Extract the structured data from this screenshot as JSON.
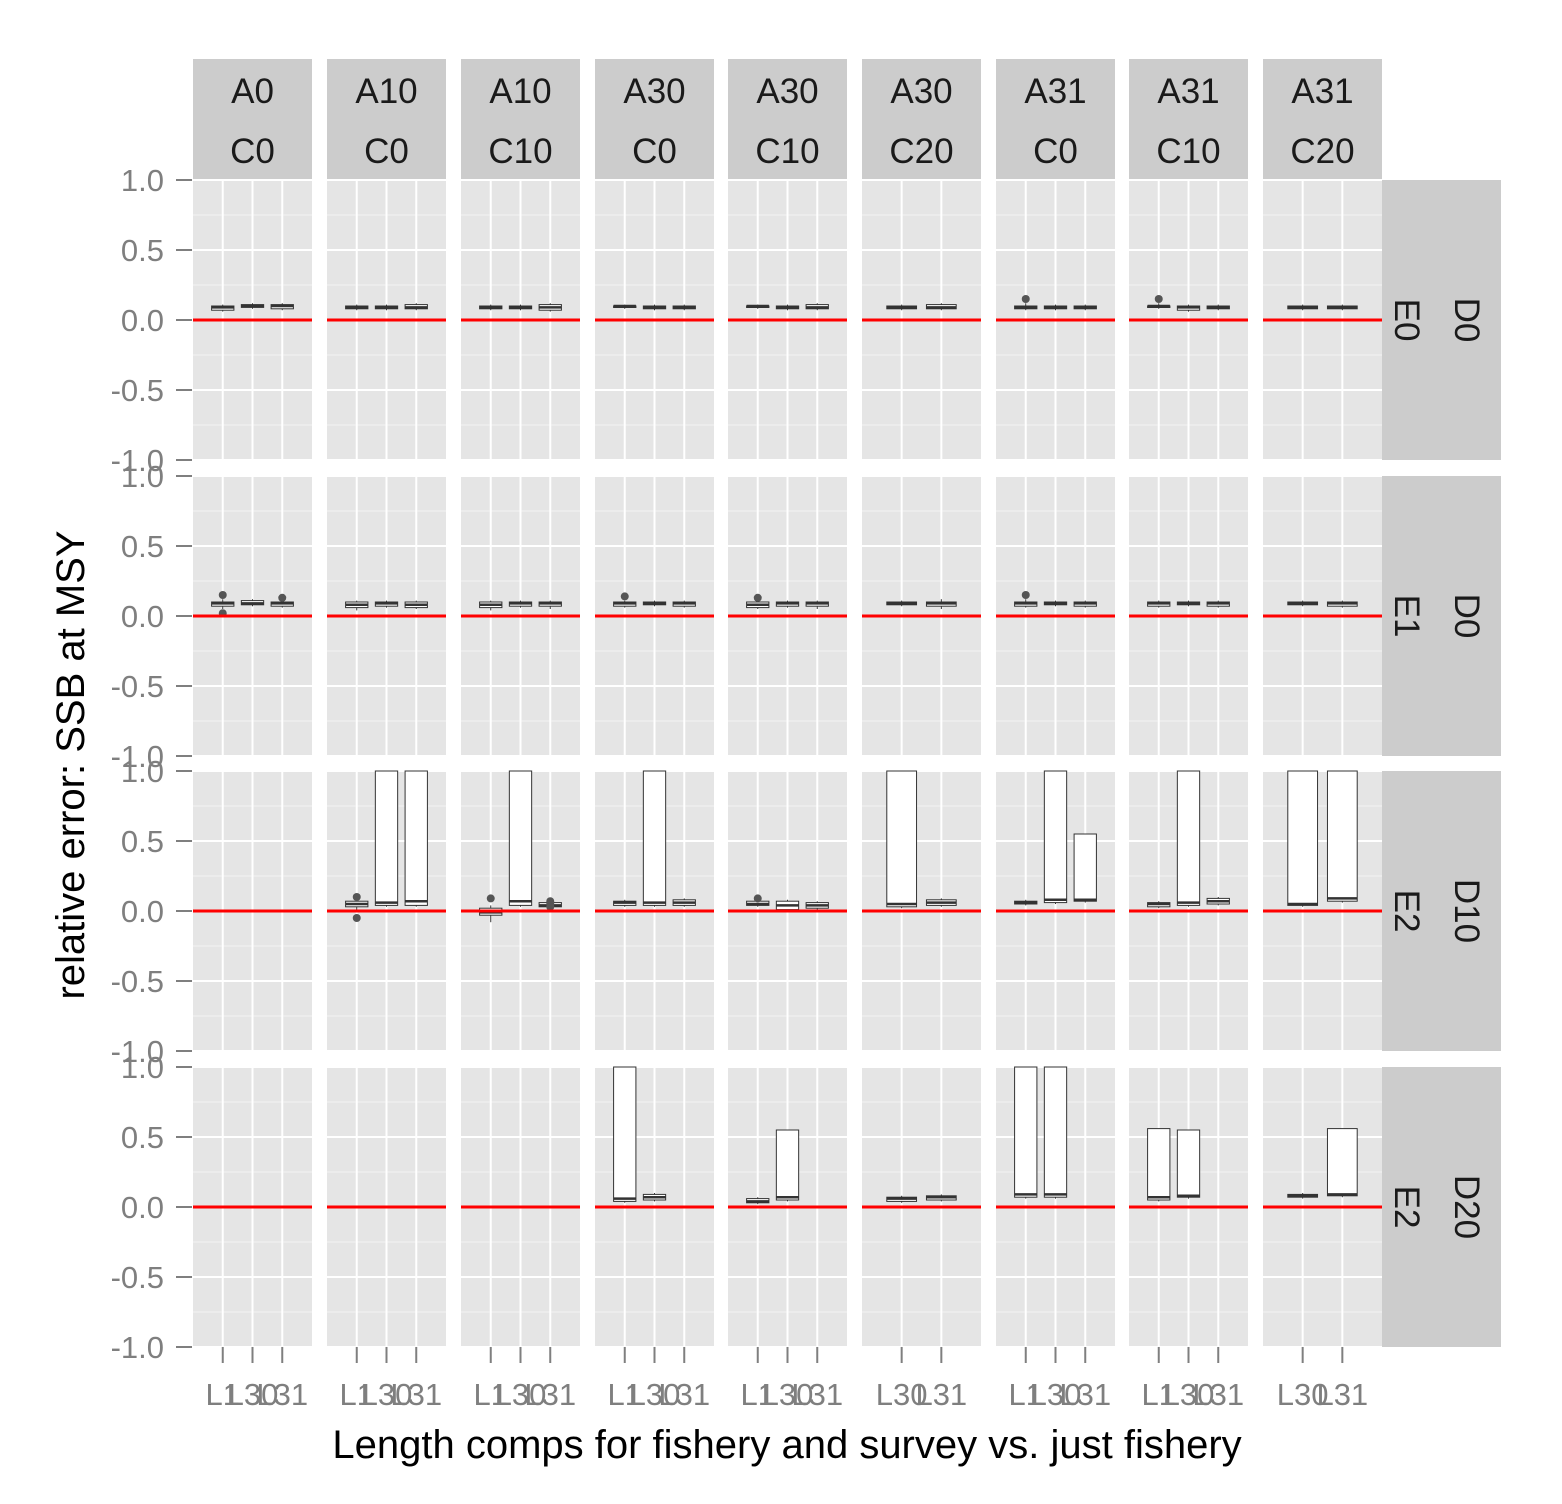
{
  "chart_data": {
    "type": "boxplot",
    "xlabel": "Length comps for fishery and survey vs. just fishery",
    "ylabel": "relative error: SSB at MSY",
    "ylim": [
      -1.0,
      1.0
    ],
    "y_ticks": [
      "1.0",
      "0.5",
      "0.0",
      "-0.5",
      "-1.0"
    ],
    "y_tick_values": [
      1.0,
      0.5,
      0.0,
      -0.5,
      -1.0
    ],
    "reference_line": {
      "y": 0,
      "color": "#ff0000"
    },
    "colors": {
      "panel_bg": "#e5e5e5",
      "strip_bg": "#cccccc",
      "grid": "#ffffff",
      "box_fill": "#ffffff",
      "box_stroke": "#333333",
      "outlier": "#555555"
    },
    "columns": [
      {
        "top": "A0",
        "bottom": "C0",
        "x_categories": [
          "L1",
          "L30",
          "L31"
        ],
        "x_tick_labels": [
          "L1",
          "L30",
          "L31"
        ]
      },
      {
        "top": "A10",
        "bottom": "C0",
        "x_categories": [
          "L1",
          "L30",
          "L31"
        ],
        "x_tick_labels": [
          "L1",
          "L30",
          "L31"
        ]
      },
      {
        "top": "A10",
        "bottom": "C10",
        "x_categories": [
          "L1",
          "L30",
          "L31"
        ],
        "x_tick_labels": [
          "L1",
          "L30",
          "L31"
        ]
      },
      {
        "top": "A30",
        "bottom": "C0",
        "x_categories": [
          "L1",
          "L30",
          "L31"
        ],
        "x_tick_labels": [
          "L1",
          "L30",
          "L31"
        ]
      },
      {
        "top": "A30",
        "bottom": "C10",
        "x_categories": [
          "L1",
          "L30",
          "L31"
        ],
        "x_tick_labels": [
          "L1",
          "L30",
          "L31"
        ]
      },
      {
        "top": "A30",
        "bottom": "C20",
        "x_categories": [
          "L30",
          "L31"
        ],
        "x_tick_labels": [
          "L30",
          "L31"
        ]
      },
      {
        "top": "A31",
        "bottom": "C0",
        "x_categories": [
          "L1",
          "L30",
          "L31"
        ],
        "x_tick_labels": [
          "L1",
          "L30",
          "L31"
        ]
      },
      {
        "top": "A31",
        "bottom": "C10",
        "x_categories": [
          "L1",
          "L30",
          "L31"
        ],
        "x_tick_labels": [
          "L1",
          "L30",
          "L31"
        ]
      },
      {
        "top": "A31",
        "bottom": "C20",
        "x_categories": [
          "L30",
          "L31"
        ],
        "x_tick_labels": [
          "L30",
          "L31"
        ]
      }
    ],
    "rows": [
      {
        "top": "D0",
        "bottom": "E0"
      },
      {
        "top": "D0",
        "bottom": "E1"
      },
      {
        "top": "D10",
        "bottom": "E2"
      },
      {
        "top": "D20",
        "bottom": "E2"
      }
    ],
    "boxes": [
      [
        [
          {
            "q1": 0.07,
            "med": 0.09,
            "q3": 0.1,
            "lo": 0.06,
            "hi": 0.11
          },
          {
            "q1": 0.09,
            "med": 0.1,
            "q3": 0.11,
            "lo": 0.08,
            "hi": 0.12
          },
          {
            "q1": 0.08,
            "med": 0.1,
            "q3": 0.11,
            "lo": 0.07,
            "hi": 0.12
          }
        ],
        [
          {
            "q1": 0.08,
            "med": 0.09,
            "q3": 0.1,
            "lo": 0.07,
            "hi": 0.11
          },
          {
            "q1": 0.08,
            "med": 0.09,
            "q3": 0.1,
            "lo": 0.07,
            "hi": 0.11
          },
          {
            "q1": 0.08,
            "med": 0.09,
            "q3": 0.11,
            "lo": 0.07,
            "hi": 0.12
          }
        ],
        [
          {
            "q1": 0.08,
            "med": 0.09,
            "q3": 0.1,
            "lo": 0.07,
            "hi": 0.11
          },
          {
            "q1": 0.08,
            "med": 0.09,
            "q3": 0.1,
            "lo": 0.07,
            "hi": 0.11
          },
          {
            "q1": 0.07,
            "med": 0.09,
            "q3": 0.11,
            "lo": 0.06,
            "hi": 0.12
          }
        ],
        [
          {
            "q1": 0.09,
            "med": 0.1,
            "q3": 0.1,
            "lo": 0.08,
            "hi": 0.11
          },
          {
            "q1": 0.08,
            "med": 0.09,
            "q3": 0.1,
            "lo": 0.07,
            "hi": 0.11
          },
          {
            "q1": 0.08,
            "med": 0.09,
            "q3": 0.1,
            "lo": 0.07,
            "hi": 0.11
          }
        ],
        [
          {
            "q1": 0.09,
            "med": 0.1,
            "q3": 0.1,
            "lo": 0.08,
            "hi": 0.11
          },
          {
            "q1": 0.08,
            "med": 0.09,
            "q3": 0.1,
            "lo": 0.07,
            "hi": 0.11
          },
          {
            "q1": 0.08,
            "med": 0.09,
            "q3": 0.11,
            "lo": 0.07,
            "hi": 0.12
          }
        ],
        [
          {
            "q1": 0.08,
            "med": 0.09,
            "q3": 0.1,
            "lo": 0.07,
            "hi": 0.11
          },
          {
            "q1": 0.08,
            "med": 0.09,
            "q3": 0.11,
            "lo": 0.07,
            "hi": 0.12
          }
        ],
        [
          {
            "q1": 0.08,
            "med": 0.09,
            "q3": 0.1,
            "lo": 0.07,
            "hi": 0.12,
            "outliers": [
              0.15
            ]
          },
          {
            "q1": 0.08,
            "med": 0.09,
            "q3": 0.1,
            "lo": 0.07,
            "hi": 0.11
          },
          {
            "q1": 0.08,
            "med": 0.09,
            "q3": 0.1,
            "lo": 0.07,
            "hi": 0.11
          }
        ],
        [
          {
            "q1": 0.09,
            "med": 0.1,
            "q3": 0.1,
            "lo": 0.08,
            "hi": 0.12,
            "outliers": [
              0.15
            ]
          },
          {
            "q1": 0.07,
            "med": 0.09,
            "q3": 0.1,
            "lo": 0.06,
            "hi": 0.11
          },
          {
            "q1": 0.08,
            "med": 0.09,
            "q3": 0.1,
            "lo": 0.07,
            "hi": 0.11
          }
        ],
        [
          {
            "q1": 0.08,
            "med": 0.09,
            "q3": 0.1,
            "lo": 0.07,
            "hi": 0.11
          },
          {
            "q1": 0.08,
            "med": 0.09,
            "q3": 0.1,
            "lo": 0.07,
            "hi": 0.11
          }
        ]
      ],
      [
        [
          {
            "q1": 0.07,
            "med": 0.09,
            "q3": 0.1,
            "lo": 0.05,
            "hi": 0.12,
            "outliers": [
              0.15,
              0.02
            ]
          },
          {
            "q1": 0.08,
            "med": 0.09,
            "q3": 0.11,
            "lo": 0.07,
            "hi": 0.12
          },
          {
            "q1": 0.07,
            "med": 0.09,
            "q3": 0.1,
            "lo": 0.06,
            "hi": 0.11,
            "outliers": [
              0.13
            ]
          }
        ],
        [
          {
            "q1": 0.06,
            "med": 0.08,
            "q3": 0.1,
            "lo": 0.04,
            "hi": 0.11
          },
          {
            "q1": 0.07,
            "med": 0.09,
            "q3": 0.1,
            "lo": 0.06,
            "hi": 0.11
          },
          {
            "q1": 0.06,
            "med": 0.08,
            "q3": 0.1,
            "lo": 0.05,
            "hi": 0.11
          }
        ],
        [
          {
            "q1": 0.06,
            "med": 0.08,
            "q3": 0.1,
            "lo": 0.04,
            "hi": 0.11
          },
          {
            "q1": 0.07,
            "med": 0.09,
            "q3": 0.1,
            "lo": 0.06,
            "hi": 0.11
          },
          {
            "q1": 0.07,
            "med": 0.09,
            "q3": 0.1,
            "lo": 0.05,
            "hi": 0.11
          }
        ],
        [
          {
            "q1": 0.07,
            "med": 0.09,
            "q3": 0.1,
            "lo": 0.06,
            "hi": 0.11,
            "outliers": [
              0.14
            ]
          },
          {
            "q1": 0.08,
            "med": 0.09,
            "q3": 0.1,
            "lo": 0.07,
            "hi": 0.11
          },
          {
            "q1": 0.07,
            "med": 0.09,
            "q3": 0.1,
            "lo": 0.06,
            "hi": 0.11
          }
        ],
        [
          {
            "q1": 0.06,
            "med": 0.08,
            "q3": 0.1,
            "lo": 0.05,
            "hi": 0.11,
            "outliers": [
              0.13
            ]
          },
          {
            "q1": 0.07,
            "med": 0.09,
            "q3": 0.1,
            "lo": 0.06,
            "hi": 0.11
          },
          {
            "q1": 0.07,
            "med": 0.09,
            "q3": 0.1,
            "lo": 0.05,
            "hi": 0.11
          }
        ],
        [
          {
            "q1": 0.08,
            "med": 0.09,
            "q3": 0.1,
            "lo": 0.07,
            "hi": 0.11
          },
          {
            "q1": 0.07,
            "med": 0.09,
            "q3": 0.1,
            "lo": 0.05,
            "hi": 0.12
          }
        ],
        [
          {
            "q1": 0.07,
            "med": 0.09,
            "q3": 0.1,
            "lo": 0.06,
            "hi": 0.12,
            "outliers": [
              0.15
            ]
          },
          {
            "q1": 0.08,
            "med": 0.09,
            "q3": 0.1,
            "lo": 0.07,
            "hi": 0.11
          },
          {
            "q1": 0.07,
            "med": 0.09,
            "q3": 0.1,
            "lo": 0.06,
            "hi": 0.11
          }
        ],
        [
          {
            "q1": 0.07,
            "med": 0.09,
            "q3": 0.1,
            "lo": 0.06,
            "hi": 0.11
          },
          {
            "q1": 0.08,
            "med": 0.09,
            "q3": 0.1,
            "lo": 0.07,
            "hi": 0.11
          },
          {
            "q1": 0.07,
            "med": 0.09,
            "q3": 0.1,
            "lo": 0.06,
            "hi": 0.11
          }
        ],
        [
          {
            "q1": 0.08,
            "med": 0.09,
            "q3": 0.1,
            "lo": 0.07,
            "hi": 0.11
          },
          {
            "q1": 0.07,
            "med": 0.09,
            "q3": 0.1,
            "lo": 0.06,
            "hi": 0.11
          }
        ]
      ],
      [
        [],
        [
          {
            "q1": 0.03,
            "med": 0.05,
            "q3": 0.07,
            "lo": 0.0,
            "hi": 0.09,
            "outliers": [
              0.1,
              -0.05
            ]
          },
          {
            "q1": 0.04,
            "med": 0.06,
            "q3": 1.0,
            "lo": 0.03,
            "hi": 1.0
          },
          {
            "q1": 0.04,
            "med": 0.07,
            "q3": 1.0,
            "lo": 0.03,
            "hi": 1.0
          }
        ],
        [
          {
            "q1": -0.03,
            "med": -0.01,
            "q3": 0.02,
            "lo": -0.08,
            "hi": 0.04,
            "outliers": [
              0.09
            ]
          },
          {
            "q1": 0.04,
            "med": 0.07,
            "q3": 1.0,
            "lo": 0.03,
            "hi": 1.0
          },
          {
            "q1": 0.03,
            "med": 0.04,
            "q3": 0.06,
            "lo": 0.02,
            "hi": 0.07,
            "outliers": [
              0.07,
              0.05,
              0.03
            ]
          }
        ],
        [
          {
            "q1": 0.04,
            "med": 0.06,
            "q3": 0.07,
            "lo": 0.03,
            "hi": 0.08
          },
          {
            "q1": 0.04,
            "med": 0.06,
            "q3": 1.0,
            "lo": 0.03,
            "hi": 1.0
          },
          {
            "q1": 0.04,
            "med": 0.06,
            "q3": 0.08,
            "lo": 0.03,
            "hi": 0.09
          }
        ],
        [
          {
            "q1": 0.04,
            "med": 0.05,
            "q3": 0.07,
            "lo": 0.03,
            "hi": 0.08,
            "outliers": [
              0.09
            ]
          },
          {
            "q1": 0.01,
            "med": 0.04,
            "q3": 0.07,
            "lo": 0.0,
            "hi": 0.08
          },
          {
            "q1": 0.02,
            "med": 0.04,
            "q3": 0.06,
            "lo": 0.01,
            "hi": 0.07
          }
        ],
        [
          {
            "q1": 0.03,
            "med": 0.05,
            "q3": 1.0,
            "lo": 0.02,
            "hi": 1.0
          },
          {
            "q1": 0.04,
            "med": 0.06,
            "q3": 0.08,
            "lo": 0.03,
            "hi": 0.09
          }
        ],
        [
          {
            "q1": 0.05,
            "med": 0.06,
            "q3": 0.07,
            "lo": 0.04,
            "hi": 0.08
          },
          {
            "q1": 0.06,
            "med": 0.08,
            "q3": 1.0,
            "lo": 0.05,
            "hi": 1.0
          },
          {
            "q1": 0.07,
            "med": 0.08,
            "q3": 0.55,
            "lo": 0.06,
            "hi": 0.55
          }
        ],
        [
          {
            "q1": 0.03,
            "med": 0.05,
            "q3": 0.06,
            "lo": 0.02,
            "hi": 0.07
          },
          {
            "q1": 0.04,
            "med": 0.06,
            "q3": 1.0,
            "lo": 0.03,
            "hi": 1.0
          },
          {
            "q1": 0.05,
            "med": 0.07,
            "q3": 0.09,
            "lo": 0.04,
            "hi": 0.1
          }
        ],
        [
          {
            "q1": 0.04,
            "med": 0.05,
            "q3": 1.0,
            "lo": 0.03,
            "hi": 1.0
          },
          {
            "q1": 0.07,
            "med": 0.09,
            "q3": 1.0,
            "lo": 0.06,
            "hi": 1.0
          }
        ]
      ],
      [
        [],
        [],
        [],
        [
          {
            "q1": 0.04,
            "med": 0.06,
            "q3": 1.0,
            "lo": 0.03,
            "hi": 1.0
          },
          {
            "q1": 0.05,
            "med": 0.07,
            "q3": 0.09,
            "lo": 0.04,
            "hi": 0.1
          }
        ],
        [
          {
            "q1": 0.03,
            "med": 0.04,
            "q3": 0.06,
            "lo": 0.02,
            "hi": 0.07
          },
          {
            "q1": 0.05,
            "med": 0.07,
            "q3": 0.55,
            "lo": 0.04,
            "hi": 0.55
          }
        ],
        [
          {
            "q1": 0.04,
            "med": 0.06,
            "q3": 0.07,
            "lo": 0.03,
            "hi": 0.08
          },
          {
            "q1": 0.05,
            "med": 0.07,
            "q3": 0.08,
            "lo": 0.04,
            "hi": 0.09
          }
        ],
        [
          {
            "q1": 0.07,
            "med": 0.09,
            "q3": 1.0,
            "lo": 0.06,
            "hi": 1.0
          },
          {
            "q1": 0.07,
            "med": 0.09,
            "q3": 1.0,
            "lo": 0.06,
            "hi": 1.0
          }
        ],
        [
          {
            "q1": 0.05,
            "med": 0.07,
            "q3": 0.56,
            "lo": 0.04,
            "hi": 0.56
          },
          {
            "q1": 0.07,
            "med": 0.08,
            "q3": 0.55,
            "lo": 0.06,
            "hi": 0.55
          }
        ],
        [
          {
            "q1": 0.07,
            "med": 0.08,
            "q3": 0.09,
            "lo": 0.06,
            "hi": 0.1
          },
          {
            "q1": 0.08,
            "med": 0.09,
            "q3": 0.56,
            "lo": 0.07,
            "hi": 0.56
          }
        ]
      ]
    ]
  }
}
